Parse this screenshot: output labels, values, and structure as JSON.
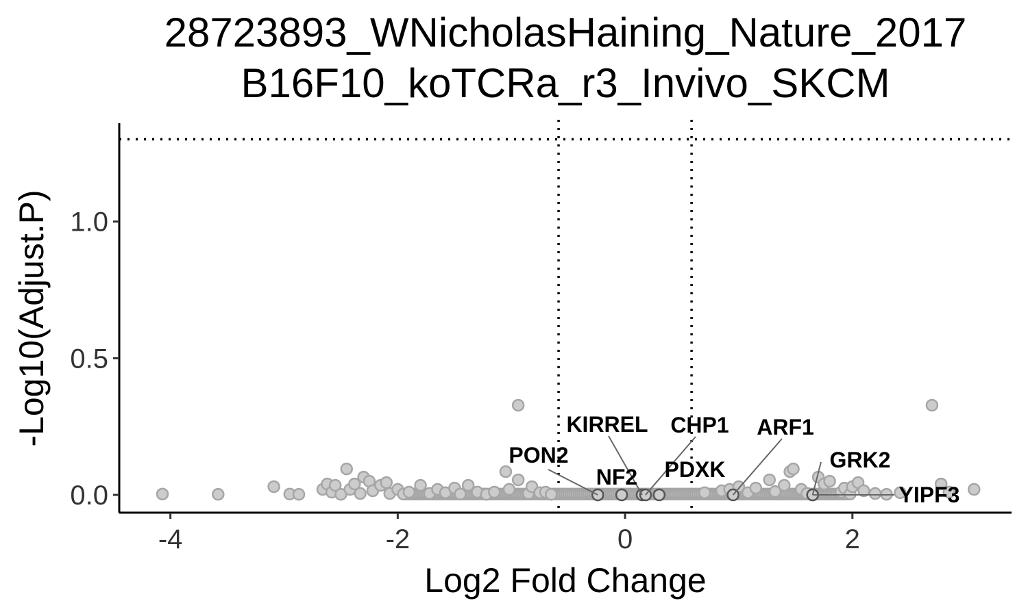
{
  "chart_data": {
    "type": "scatter",
    "title": "28723893_WNicholasHaining_Nature_2017",
    "subtitle": "B16F10_koTCRa_r3_Invivo_SKCM",
    "xlabel": "Log2 Fold Change",
    "ylabel": "-Log10(Adjust.P)",
    "xlim": [
      -4.45,
      3.4
    ],
    "ylim": [
      -0.065,
      1.36
    ],
    "x_ticks": [
      {
        "value": -4,
        "label": "-4"
      },
      {
        "value": -2,
        "label": "-2"
      },
      {
        "value": 0,
        "label": "0"
      },
      {
        "value": 2,
        "label": "2"
      }
    ],
    "y_ticks": [
      {
        "value": 0.0,
        "label": "0.0"
      },
      {
        "value": 0.5,
        "label": "0.5"
      },
      {
        "value": 1.0,
        "label": "1.0"
      }
    ],
    "thresholds": {
      "x": [
        -0.585,
        0.585
      ],
      "y": 1.301
    },
    "grid": false,
    "legend": "none",
    "colors": {
      "point_fill": "#cccccc",
      "point_stroke": "#a6a6a6",
      "highlight_stroke": "#555555",
      "threshold_line": "#000000",
      "connector": "#666666"
    },
    "points": [
      {
        "x": -4.07,
        "y": 0.003
      },
      {
        "x": -3.58,
        "y": 0.002
      },
      {
        "x": -3.09,
        "y": 0.03
      },
      {
        "x": -2.95,
        "y": 0.003
      },
      {
        "x": -2.87,
        "y": 0.002
      },
      {
        "x": -2.66,
        "y": 0.02
      },
      {
        "x": -2.62,
        "y": 0.04
      },
      {
        "x": -2.58,
        "y": 0.01
      },
      {
        "x": -2.55,
        "y": 0.035
      },
      {
        "x": -2.5,
        "y": 0.002
      },
      {
        "x": -2.45,
        "y": 0.095
      },
      {
        "x": -2.42,
        "y": 0.02
      },
      {
        "x": -2.38,
        "y": 0.04
      },
      {
        "x": -2.33,
        "y": 0.005
      },
      {
        "x": -2.3,
        "y": 0.065
      },
      {
        "x": -2.25,
        "y": 0.05
      },
      {
        "x": -2.22,
        "y": 0.015
      },
      {
        "x": -2.15,
        "y": 0.035
      },
      {
        "x": -2.1,
        "y": 0.045
      },
      {
        "x": -2.07,
        "y": 0.005
      },
      {
        "x": -2.0,
        "y": 0.02
      },
      {
        "x": -1.95,
        "y": 0.003
      },
      {
        "x": -1.9,
        "y": 0.01
      },
      {
        "x": -1.8,
        "y": 0.035
      },
      {
        "x": -1.72,
        "y": 0.005
      },
      {
        "x": -1.65,
        "y": 0.02
      },
      {
        "x": -1.58,
        "y": 0.008
      },
      {
        "x": -1.5,
        "y": 0.025
      },
      {
        "x": -1.45,
        "y": 0.003
      },
      {
        "x": -1.38,
        "y": 0.035
      },
      {
        "x": -1.3,
        "y": 0.01
      },
      {
        "x": -1.22,
        "y": 0.002
      },
      {
        "x": -1.15,
        "y": 0.01
      },
      {
        "x": -1.05,
        "y": 0.085
      },
      {
        "x": -1.02,
        "y": 0.02
      },
      {
        "x": -0.94,
        "y": 0.328
      },
      {
        "x": -0.94,
        "y": 0.055
      },
      {
        "x": -0.85,
        "y": 0.005
      },
      {
        "x": -0.82,
        "y": 0.03
      },
      {
        "x": -0.75,
        "y": 0.008
      },
      {
        "x": -0.7,
        "y": 0.01
      },
      {
        "x": -0.65,
        "y": 0.002
      },
      {
        "x": 0.7,
        "y": 0.008
      },
      {
        "x": 0.85,
        "y": 0.015
      },
      {
        "x": 0.92,
        "y": 0.02
      },
      {
        "x": 1.0,
        "y": 0.03
      },
      {
        "x": 1.08,
        "y": 0.008
      },
      {
        "x": 1.15,
        "y": 0.025
      },
      {
        "x": 1.27,
        "y": 0.055
      },
      {
        "x": 1.32,
        "y": 0.012
      },
      {
        "x": 1.4,
        "y": 0.035
      },
      {
        "x": 1.45,
        "y": 0.085
      },
      {
        "x": 1.48,
        "y": 0.095
      },
      {
        "x": 1.55,
        "y": 0.02
      },
      {
        "x": 1.6,
        "y": 0.005
      },
      {
        "x": 1.7,
        "y": 0.065
      },
      {
        "x": 1.75,
        "y": 0.04
      },
      {
        "x": 1.8,
        "y": 0.05
      },
      {
        "x": 1.9,
        "y": 0.01
      },
      {
        "x": 1.93,
        "y": 0.025
      },
      {
        "x": 1.98,
        "y": 0.003
      },
      {
        "x": 2.0,
        "y": 0.03
      },
      {
        "x": 2.05,
        "y": 0.045
      },
      {
        "x": 2.1,
        "y": 0.015
      },
      {
        "x": 2.2,
        "y": 0.005
      },
      {
        "x": 2.3,
        "y": 0.002
      },
      {
        "x": 2.42,
        "y": 0.008
      },
      {
        "x": 2.7,
        "y": 0.328
      },
      {
        "x": 2.78,
        "y": 0.04
      },
      {
        "x": 2.85,
        "y": 0.01
      },
      {
        "x": 3.07,
        "y": 0.02
      }
    ],
    "dense_band": {
      "x_from": -1.95,
      "x_to": 1.95,
      "y": 0.003
    },
    "highlighted": [
      {
        "label": "PON2",
        "x": -0.24,
        "y": 0.0
      },
      {
        "label": "NF2",
        "x": -0.03,
        "y": 0.0
      },
      {
        "label": "KIRREL",
        "x": 0.15,
        "y": 0.0
      },
      {
        "label": "CHP1",
        "x": 0.18,
        "y": 0.0
      },
      {
        "label": "PDXK",
        "x": 0.3,
        "y": 0.0
      },
      {
        "label": "ARF1",
        "x": 0.95,
        "y": 0.0
      },
      {
        "label": "GRK2",
        "x": 1.65,
        "y": 0.0
      },
      {
        "label": "YIPF3",
        "x": 1.65,
        "y": 0.0
      }
    ]
  }
}
